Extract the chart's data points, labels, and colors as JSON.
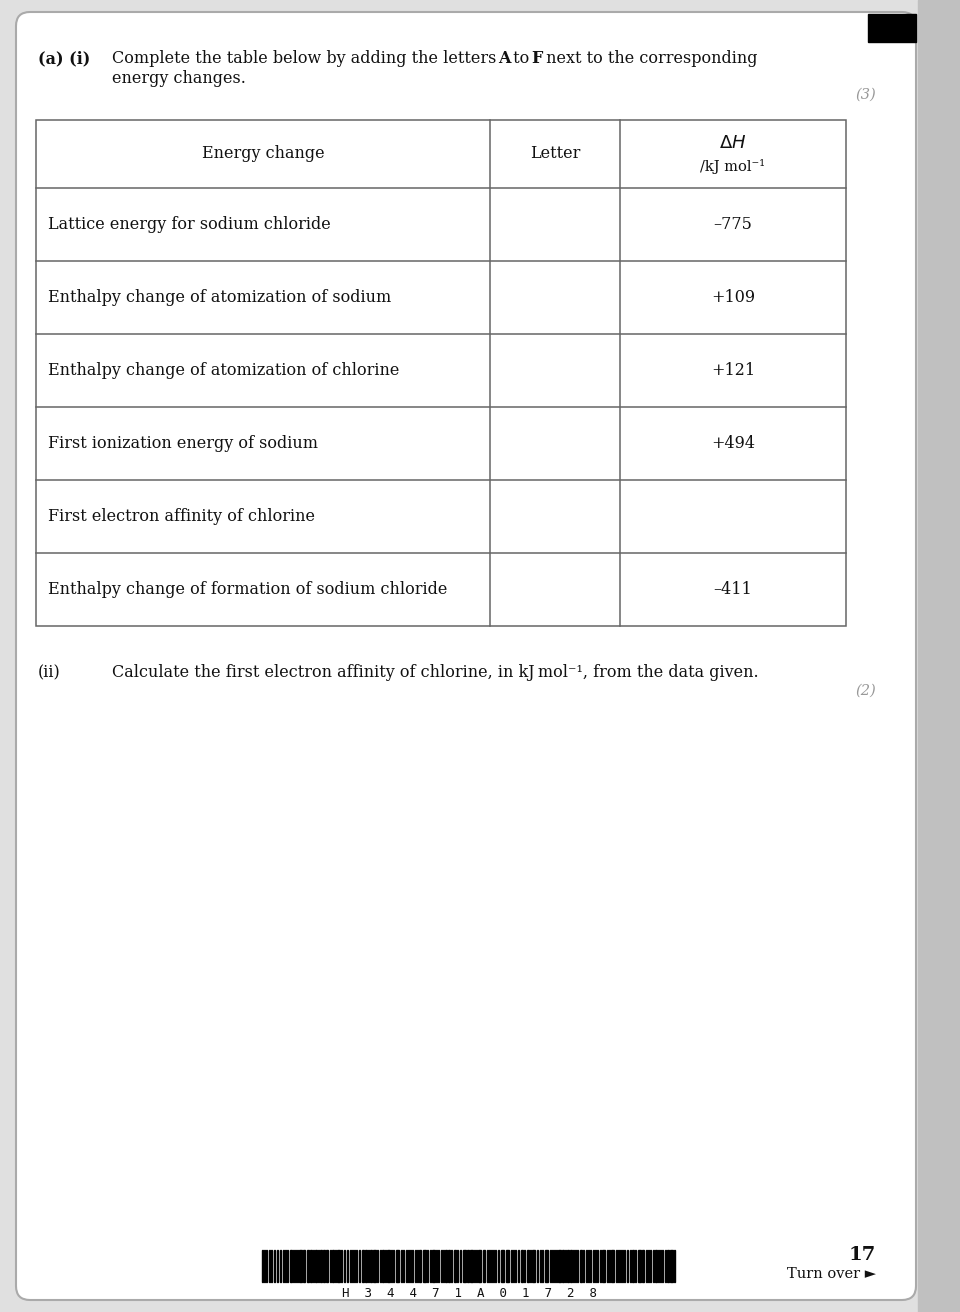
{
  "page_bg": "#e0e0e0",
  "card_bg": "#ffffff",
  "border_color": "#aaaaaa",
  "table_border": "#666666",
  "text_color": "#111111",
  "marks_color": "#999999",
  "marks_3": "(3)",
  "marks_2": "(2)",
  "page_number": "17",
  "turn_over": "Turn over ►",
  "barcode_text": "H  3  4  4  7  1  A  0  1  7  2  8",
  "table_rows": [
    [
      "Lattice energy for sodium chloride",
      "",
      "–775"
    ],
    [
      "Enthalpy change of atomization of sodium",
      "",
      "+109"
    ],
    [
      "Enthalpy change of atomization of chlorine",
      "",
      "+121"
    ],
    [
      "First ionization energy of sodium",
      "",
      "+494"
    ],
    [
      "First electron affinity of chlorine",
      "",
      ""
    ],
    [
      "Enthalpy change of formation of sodium chloride",
      "",
      "–411"
    ]
  ]
}
